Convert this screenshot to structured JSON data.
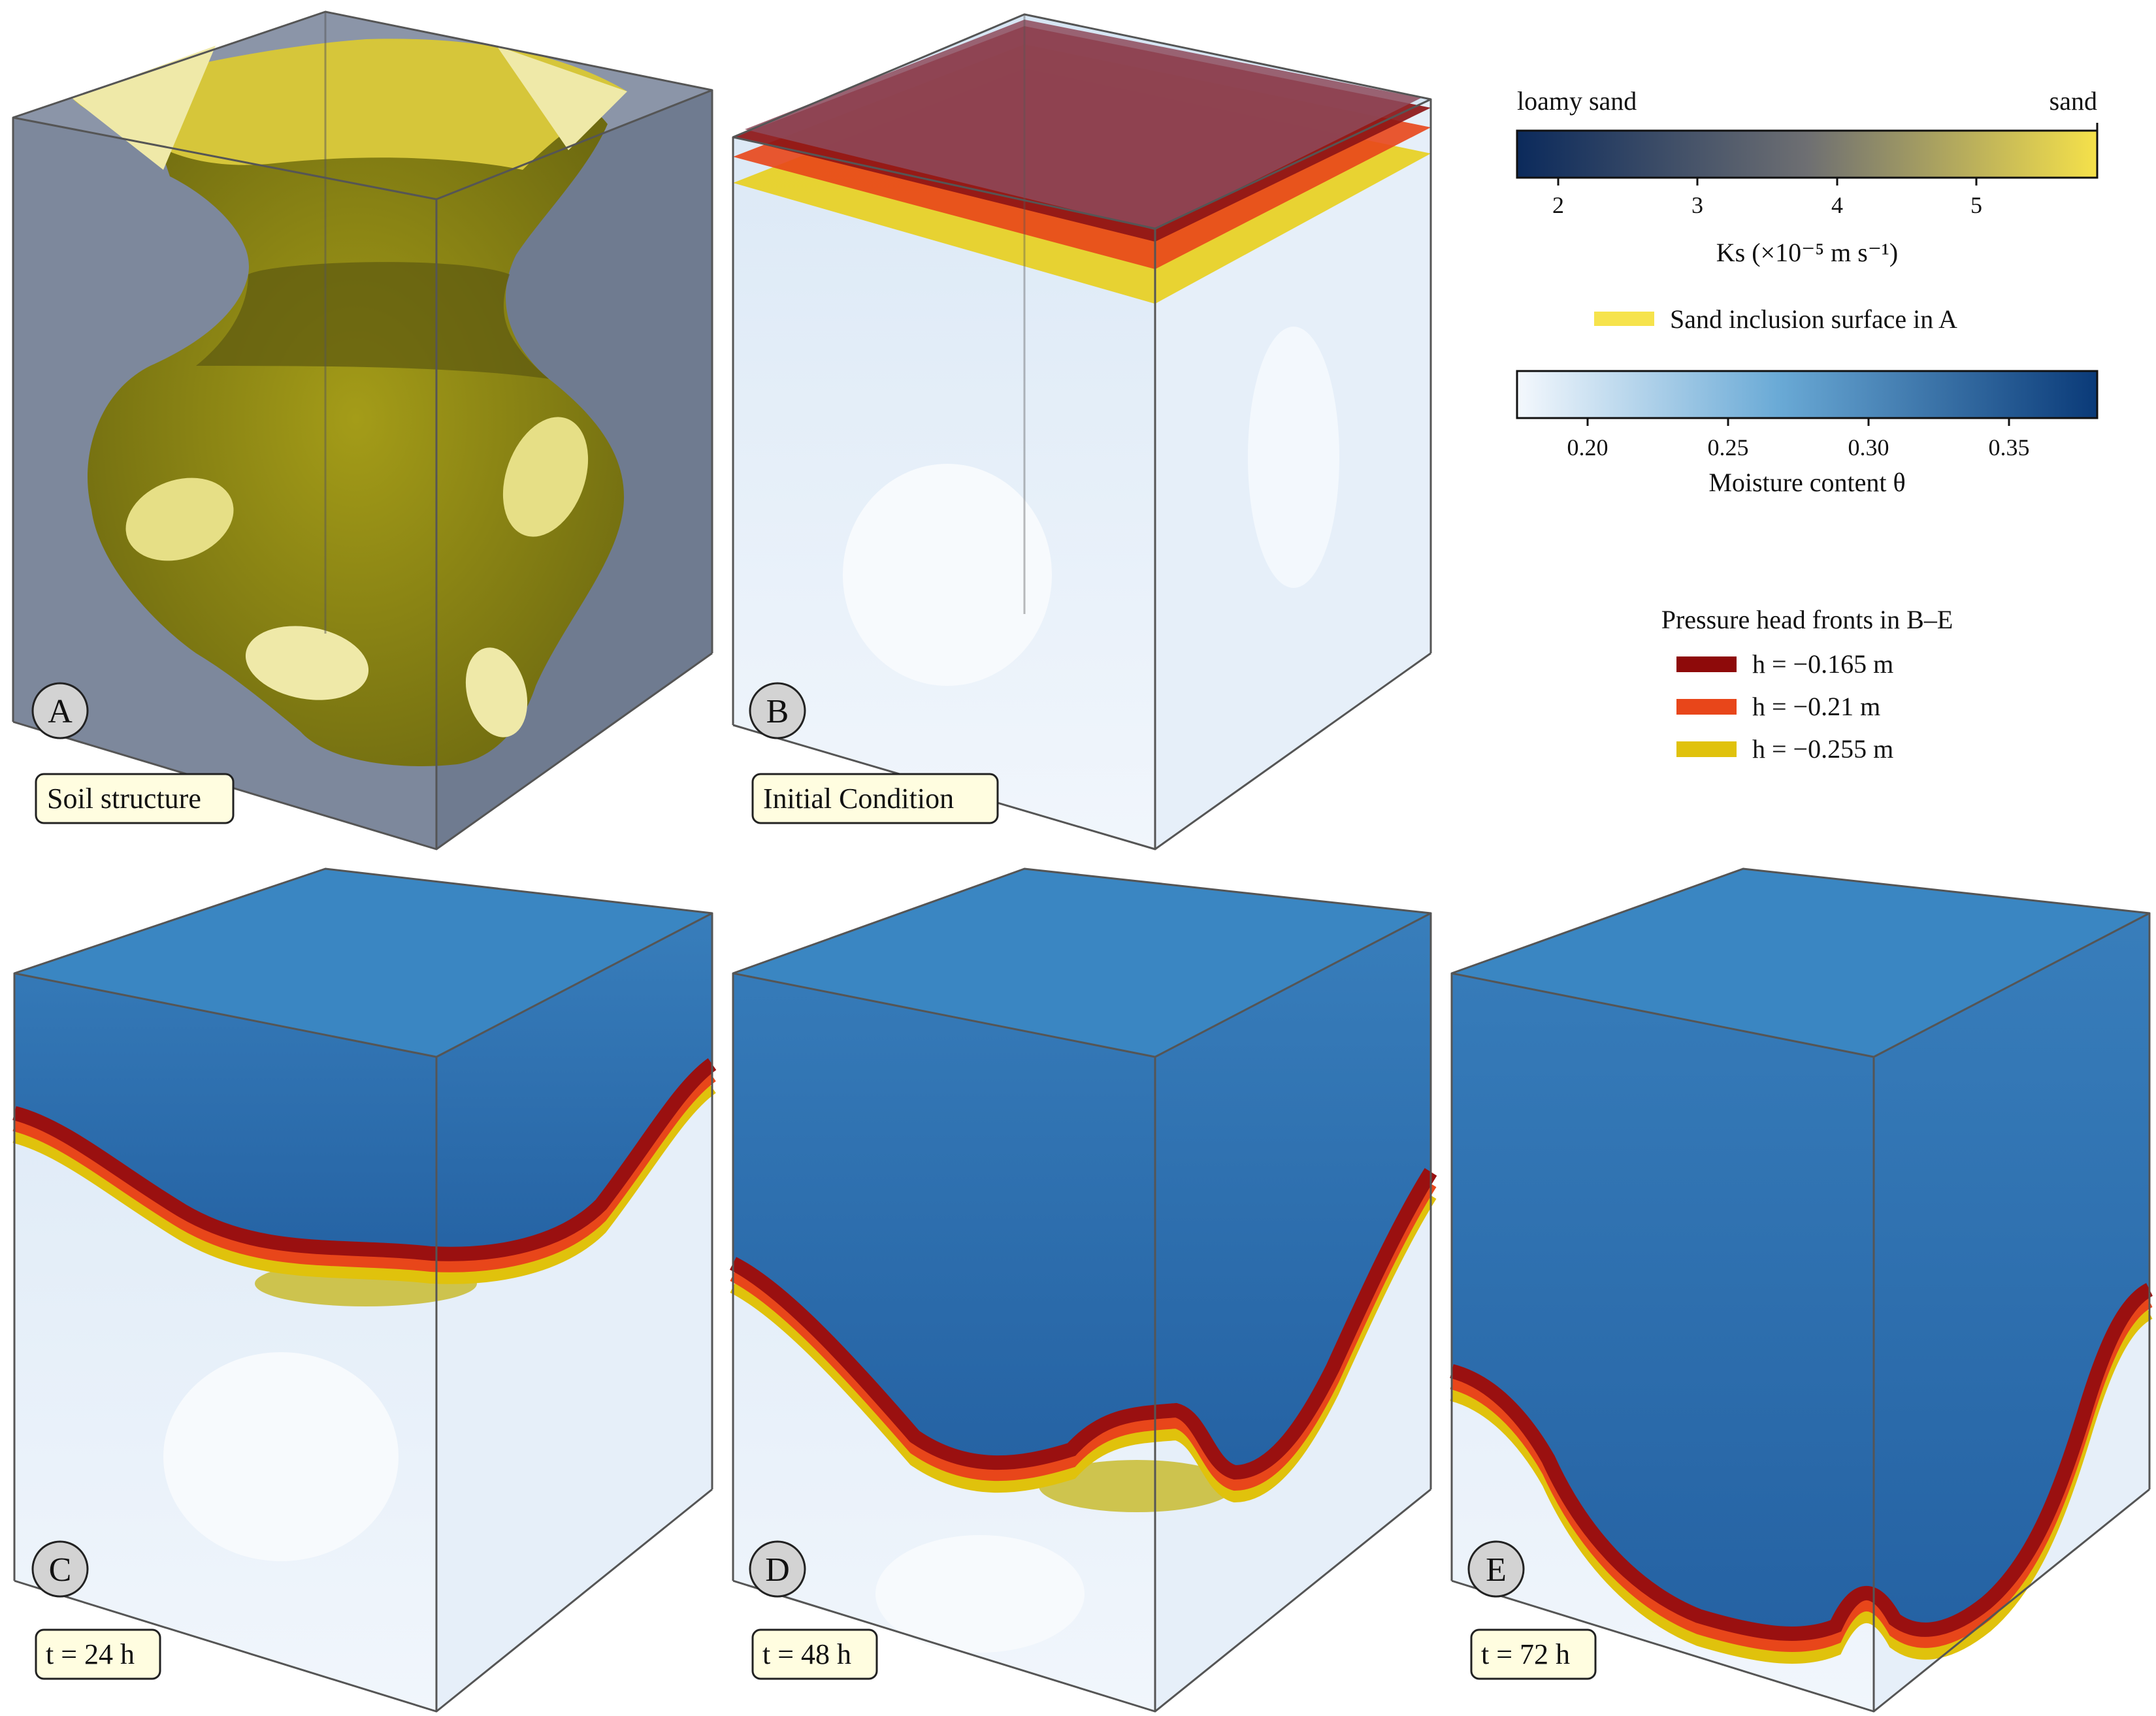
{
  "panels": [
    {
      "letter": "A",
      "caption": "Soil structure"
    },
    {
      "letter": "B",
      "caption": "Initial Condition"
    },
    {
      "letter": "C",
      "caption": "t = 24 h"
    },
    {
      "letter": "D",
      "caption": "t = 48 h"
    },
    {
      "letter": "E",
      "caption": "t = 72 h"
    }
  ],
  "ks_colorbar": {
    "left_label": "loamy sand",
    "right_label": "sand",
    "ticks": [
      "2",
      "3",
      "4",
      "5"
    ],
    "label": "Ks (×10⁻⁵ m s⁻¹)",
    "colors": [
      "#0b2a5c",
      "#6e6f72",
      "#f5e14a"
    ]
  },
  "inclusion_legend": {
    "label": "Sand inclusion surface in A",
    "color": "#f6e34c"
  },
  "theta_colorbar": {
    "ticks": [
      "0.20",
      "0.25",
      "0.30",
      "0.35"
    ],
    "label": "Moisture content θ",
    "colors": [
      "#f4f8fd",
      "#6aaad6",
      "#0a3a78"
    ]
  },
  "fronts_legend": {
    "title": "Pressure head fronts in B–E",
    "items": [
      {
        "label": "h = −0.165 m",
        "color": "#8e0a0a"
      },
      {
        "label": "h = −0.21 m",
        "color": "#e8461a"
      },
      {
        "label": "h = −0.255 m",
        "color": "#e0c20c"
      }
    ]
  }
}
